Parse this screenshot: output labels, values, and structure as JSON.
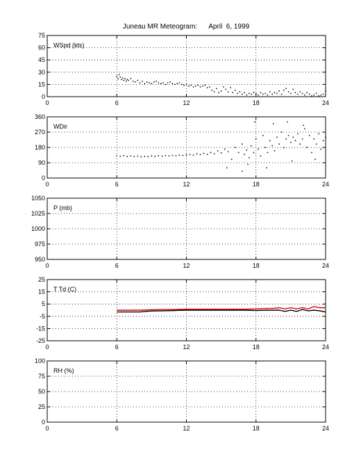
{
  "title": "Juneau MR Meteogram:      April  6, 1999",
  "chart_data": [
    {
      "type": "scatter",
      "label": "WSpd (kts)",
      "xlim": [
        0,
        24
      ],
      "xticks": [
        0,
        6,
        12,
        18,
        24
      ],
      "ylim": [
        0,
        75
      ],
      "yticks": [
        0,
        15,
        30,
        45,
        60,
        75
      ],
      "grid": true,
      "series": [
        {
          "color": "#000000",
          "points": [
            [
              6.0,
              25
            ],
            [
              6.1,
              22
            ],
            [
              6.2,
              27
            ],
            [
              6.3,
              24
            ],
            [
              6.4,
              21
            ],
            [
              6.5,
              23
            ],
            [
              6.6,
              20
            ],
            [
              6.7,
              22
            ],
            [
              6.8,
              19
            ],
            [
              6.9,
              21
            ],
            [
              7.0,
              20
            ],
            [
              7.2,
              22
            ],
            [
              7.4,
              19
            ],
            [
              7.6,
              18
            ],
            [
              7.8,
              20
            ],
            [
              8.0,
              17
            ],
            [
              8.2,
              19
            ],
            [
              8.4,
              16
            ],
            [
              8.6,
              18
            ],
            [
              8.8,
              17
            ],
            [
              9.0,
              16
            ],
            [
              9.2,
              18
            ],
            [
              9.4,
              19
            ],
            [
              9.6,
              17
            ],
            [
              9.8,
              16
            ],
            [
              10.0,
              17
            ],
            [
              10.2,
              15
            ],
            [
              10.4,
              17
            ],
            [
              10.6,
              18
            ],
            [
              10.8,
              16
            ],
            [
              11.0,
              15
            ],
            [
              11.2,
              16
            ],
            [
              11.4,
              17
            ],
            [
              11.6,
              15
            ],
            [
              11.8,
              14
            ],
            [
              12.0,
              15
            ],
            [
              12.2,
              13
            ],
            [
              12.4,
              14
            ],
            [
              12.6,
              12
            ],
            [
              12.8,
              13
            ],
            [
              13.0,
              14
            ],
            [
              13.2,
              12
            ],
            [
              13.4,
              13
            ],
            [
              13.6,
              14
            ],
            [
              13.8,
              11
            ],
            [
              14.0,
              12
            ],
            [
              14.2,
              8
            ],
            [
              14.4,
              6
            ],
            [
              14.6,
              10
            ],
            [
              14.8,
              5
            ],
            [
              15.0,
              7
            ],
            [
              15.2,
              12
            ],
            [
              15.4,
              9
            ],
            [
              15.6,
              6
            ],
            [
              15.8,
              11
            ],
            [
              16.0,
              5
            ],
            [
              16.2,
              8
            ],
            [
              16.4,
              4
            ],
            [
              16.6,
              6
            ],
            [
              16.8,
              3
            ],
            [
              17.0,
              5
            ],
            [
              17.2,
              2
            ],
            [
              17.4,
              4
            ],
            [
              17.6,
              3
            ],
            [
              17.8,
              5
            ],
            [
              18.0,
              4
            ],
            [
              18.2,
              2
            ],
            [
              18.4,
              5
            ],
            [
              18.6,
              3
            ],
            [
              18.8,
              4
            ],
            [
              19.0,
              2
            ],
            [
              19.2,
              6
            ],
            [
              19.4,
              3
            ],
            [
              19.6,
              5
            ],
            [
              19.8,
              4
            ],
            [
              20.0,
              7
            ],
            [
              20.2,
              3
            ],
            [
              20.4,
              8
            ],
            [
              20.6,
              10
            ],
            [
              20.8,
              6
            ],
            [
              21.0,
              4
            ],
            [
              21.2,
              9
            ],
            [
              21.4,
              5
            ],
            [
              21.6,
              3
            ],
            [
              21.8,
              6
            ],
            [
              22.0,
              4
            ],
            [
              22.2,
              2
            ],
            [
              22.4,
              5
            ],
            [
              22.6,
              3
            ],
            [
              22.8,
              1
            ],
            [
              23.0,
              2
            ],
            [
              23.2,
              4
            ],
            [
              23.4,
              1
            ],
            [
              23.6,
              2
            ],
            [
              23.8,
              3
            ],
            [
              24.0,
              7
            ]
          ]
        }
      ]
    },
    {
      "type": "scatter",
      "label": "WDir",
      "xlim": [
        0,
        24
      ],
      "xticks": [
        0,
        6,
        12,
        18,
        24
      ],
      "ylim": [
        0,
        360
      ],
      "yticks": [
        0,
        90,
        180,
        270,
        360
      ],
      "grid": true,
      "series": [
        {
          "color": "#000000",
          "points": [
            [
              6.0,
              130
            ],
            [
              6.3,
              128
            ],
            [
              6.6,
              132
            ],
            [
              6.9,
              127
            ],
            [
              7.2,
              130
            ],
            [
              7.5,
              126
            ],
            [
              7.8,
              129
            ],
            [
              8.1,
              125
            ],
            [
              8.4,
              128
            ],
            [
              8.7,
              126
            ],
            [
              9.0,
              130
            ],
            [
              9.3,
              128
            ],
            [
              9.6,
              131
            ],
            [
              9.9,
              129
            ],
            [
              10.2,
              132
            ],
            [
              10.5,
              130
            ],
            [
              10.8,
              133
            ],
            [
              11.1,
              131
            ],
            [
              11.4,
              135
            ],
            [
              11.7,
              133
            ],
            [
              12.0,
              136
            ],
            [
              12.3,
              139
            ],
            [
              12.6,
              135
            ],
            [
              12.9,
              142
            ],
            [
              13.2,
              138
            ],
            [
              13.5,
              145
            ],
            [
              13.8,
              140
            ],
            [
              14.1,
              150
            ],
            [
              14.4,
              143
            ],
            [
              14.7,
              160
            ],
            [
              15.0,
              148
            ],
            [
              15.3,
              170
            ],
            [
              15.6,
              155
            ],
            [
              15.9,
              110
            ],
            [
              16.2,
              180
            ],
            [
              16.5,
              150
            ],
            [
              16.8,
              200
            ],
            [
              17.0,
              140
            ],
            [
              17.2,
              165
            ],
            [
              17.4,
              120
            ],
            [
              17.6,
              190
            ],
            [
              17.8,
              150
            ],
            [
              18.0,
              230
            ],
            [
              18.2,
              170
            ],
            [
              18.4,
              130
            ],
            [
              18.6,
              250
            ],
            [
              18.8,
              180
            ],
            [
              19.0,
              150
            ],
            [
              19.2,
              220
            ],
            [
              19.4,
              190
            ],
            [
              19.6,
              160
            ],
            [
              19.8,
              240
            ],
            [
              20.0,
              200
            ],
            [
              20.2,
              270
            ],
            [
              20.4,
              180
            ],
            [
              20.6,
              230
            ],
            [
              20.8,
              250
            ],
            [
              21.0,
              210
            ],
            [
              21.2,
              240
            ],
            [
              21.4,
              220
            ],
            [
              21.6,
              260
            ],
            [
              21.8,
              200
            ],
            [
              22.0,
              230
            ],
            [
              22.2,
              290
            ],
            [
              22.4,
              180
            ],
            [
              22.6,
              250
            ],
            [
              22.8,
              150
            ],
            [
              23.0,
              230
            ],
            [
              23.2,
              200
            ],
            [
              23.4,
              260
            ],
            [
              23.6,
              170
            ],
            [
              23.8,
              220
            ],
            [
              24.0,
              240
            ],
            [
              15.5,
              60
            ],
            [
              16.8,
              40
            ],
            [
              17.3,
              80
            ],
            [
              18.9,
              60
            ],
            [
              19.5,
              320
            ],
            [
              20.7,
              330
            ],
            [
              21.1,
              100
            ],
            [
              22.1,
              310
            ],
            [
              23.1,
              110
            ],
            [
              17.9,
              330
            ]
          ]
        }
      ]
    },
    {
      "type": "scatter",
      "label": "P (mb)",
      "xlim": [
        0,
        24
      ],
      "xticks": [
        0,
        6,
        12,
        18,
        24
      ],
      "ylim": [
        950,
        1050
      ],
      "yticks": [
        950,
        975,
        1000,
        1025,
        1050
      ],
      "grid": true,
      "series": []
    },
    {
      "type": "line",
      "label": "T Td (C)",
      "xlim": [
        0,
        24
      ],
      "xticks": [
        0,
        6,
        12,
        18,
        24
      ],
      "ylim": [
        -25,
        25
      ],
      "yticks": [
        -25,
        -15,
        -5,
        5,
        15,
        25
      ],
      "grid": true,
      "series": [
        {
          "color": "#e00000",
          "points": [
            [
              6,
              0
            ],
            [
              7,
              0
            ],
            [
              8,
              0
            ],
            [
              9,
              0.3
            ],
            [
              10,
              0.5
            ],
            [
              11,
              0.6
            ],
            [
              12,
              0.8
            ],
            [
              13,
              0.8
            ],
            [
              14,
              0.8
            ],
            [
              15,
              0.8
            ],
            [
              16,
              0.8
            ],
            [
              17,
              0.8
            ],
            [
              18,
              1
            ],
            [
              19,
              1.5
            ],
            [
              19.5,
              1.5
            ],
            [
              20,
              2
            ],
            [
              20.5,
              1
            ],
            [
              21,
              2
            ],
            [
              21.5,
              1
            ],
            [
              22,
              2
            ],
            [
              22.5,
              1
            ],
            [
              23,
              3
            ],
            [
              23.5,
              2
            ],
            [
              24,
              2
            ]
          ]
        },
        {
          "color": "#000000",
          "points": [
            [
              6,
              -1.5
            ],
            [
              7,
              -1.5
            ],
            [
              8,
              -1.5
            ],
            [
              8.5,
              -1
            ],
            [
              9,
              -0.7
            ],
            [
              10,
              -0.5
            ],
            [
              11,
              -0.3
            ],
            [
              12,
              0
            ],
            [
              13,
              0
            ],
            [
              14,
              0
            ],
            [
              15,
              0
            ],
            [
              16,
              0
            ],
            [
              17,
              0
            ],
            [
              18,
              -0.3
            ],
            [
              19,
              0
            ],
            [
              20,
              0
            ],
            [
              20.5,
              -1
            ],
            [
              21,
              0
            ],
            [
              21.5,
              -1
            ],
            [
              22,
              0.5
            ],
            [
              22.5,
              -0.5
            ],
            [
              23,
              0
            ],
            [
              23.5,
              -0.5
            ],
            [
              24,
              -1.5
            ]
          ]
        }
      ]
    },
    {
      "type": "scatter",
      "label": "RH (%)",
      "xlim": [
        0,
        24
      ],
      "xticks": [
        0,
        6,
        12,
        18,
        24
      ],
      "ylim": [
        0,
        100
      ],
      "yticks": [
        0,
        25,
        50,
        75,
        100
      ],
      "grid": true,
      "series": []
    }
  ]
}
